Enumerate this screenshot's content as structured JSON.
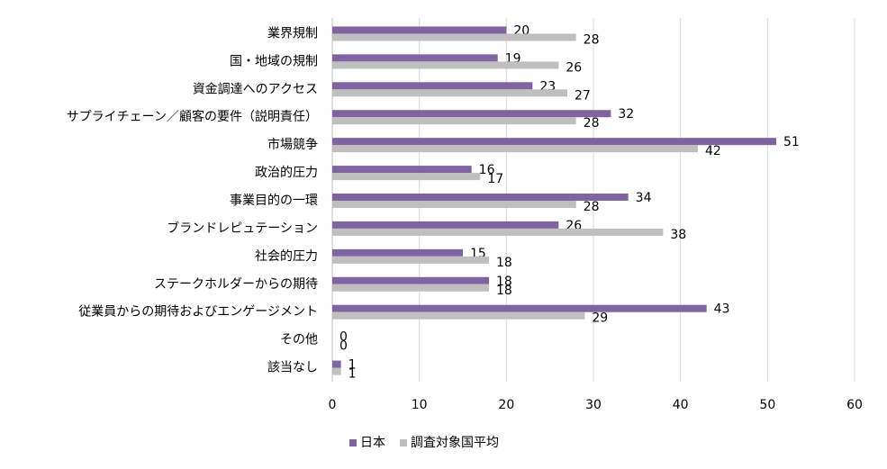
{
  "chart_data": {
    "type": "barh",
    "categories": [
      "業界規制",
      "国・地域の規制",
      "資金調達へのアクセス",
      "サプライチェーン／顧客の要件（説明責任）",
      "市場競争",
      "政治的圧力",
      "事業目的の一環",
      "ブランドレピュテーション",
      "社会的圧力",
      "ステークホルダーからの期待",
      "従業員からの期待およびエンゲージメント",
      "その他",
      "該当なし"
    ],
    "series": [
      {
        "name": "日本",
        "color": "#8064a2",
        "values": [
          20,
          19,
          23,
          32,
          51,
          16,
          34,
          26,
          15,
          18,
          43,
          0,
          1
        ]
      },
      {
        "name": "調査対象国平均",
        "color": "#bfbfbf",
        "values": [
          28,
          26,
          27,
          28,
          42,
          17,
          28,
          38,
          18,
          18,
          29,
          0,
          1
        ]
      }
    ],
    "xlim": [
      0,
      60
    ],
    "xticks": [
      0,
      10,
      20,
      30,
      40,
      50,
      60
    ],
    "grid": true,
    "legend": "bottom"
  }
}
